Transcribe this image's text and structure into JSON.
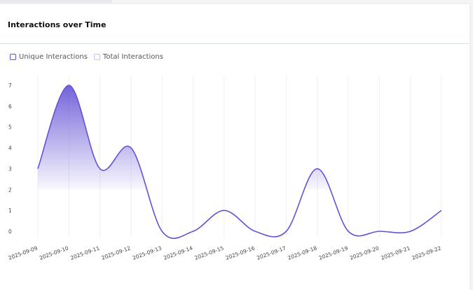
{
  "card": {
    "title": "Interactions over Time"
  },
  "legend": [
    {
      "label": "Unique Interactions",
      "color": "#6452d6"
    },
    {
      "label": "Total Interactions",
      "color": "#c9c3ee"
    }
  ],
  "chart_data": {
    "type": "area",
    "title": "Interactions over Time",
    "categories": [
      "2025-09-09",
      "2025-09-10",
      "2025-09-11",
      "2025-09-12",
      "2025-09-13",
      "2025-09-14",
      "2025-09-15",
      "2025-09-16",
      "2025-09-17",
      "2025-09-18",
      "2025-09-19",
      "2025-09-20",
      "2025-09-21",
      "2025-09-22"
    ],
    "series": [
      {
        "name": "Unique Interactions",
        "values": [
          3,
          7,
          3,
          4,
          0,
          0,
          1,
          0,
          0,
          3,
          0,
          0,
          0,
          1
        ],
        "color": "#6452d6"
      }
    ],
    "y_ticks": [
      0,
      1,
      2,
      3,
      4,
      5,
      6,
      7
    ],
    "ylim": [
      0,
      7
    ],
    "grid": "vertical",
    "legend_position": "top-left",
    "line_style": "smooth"
  }
}
